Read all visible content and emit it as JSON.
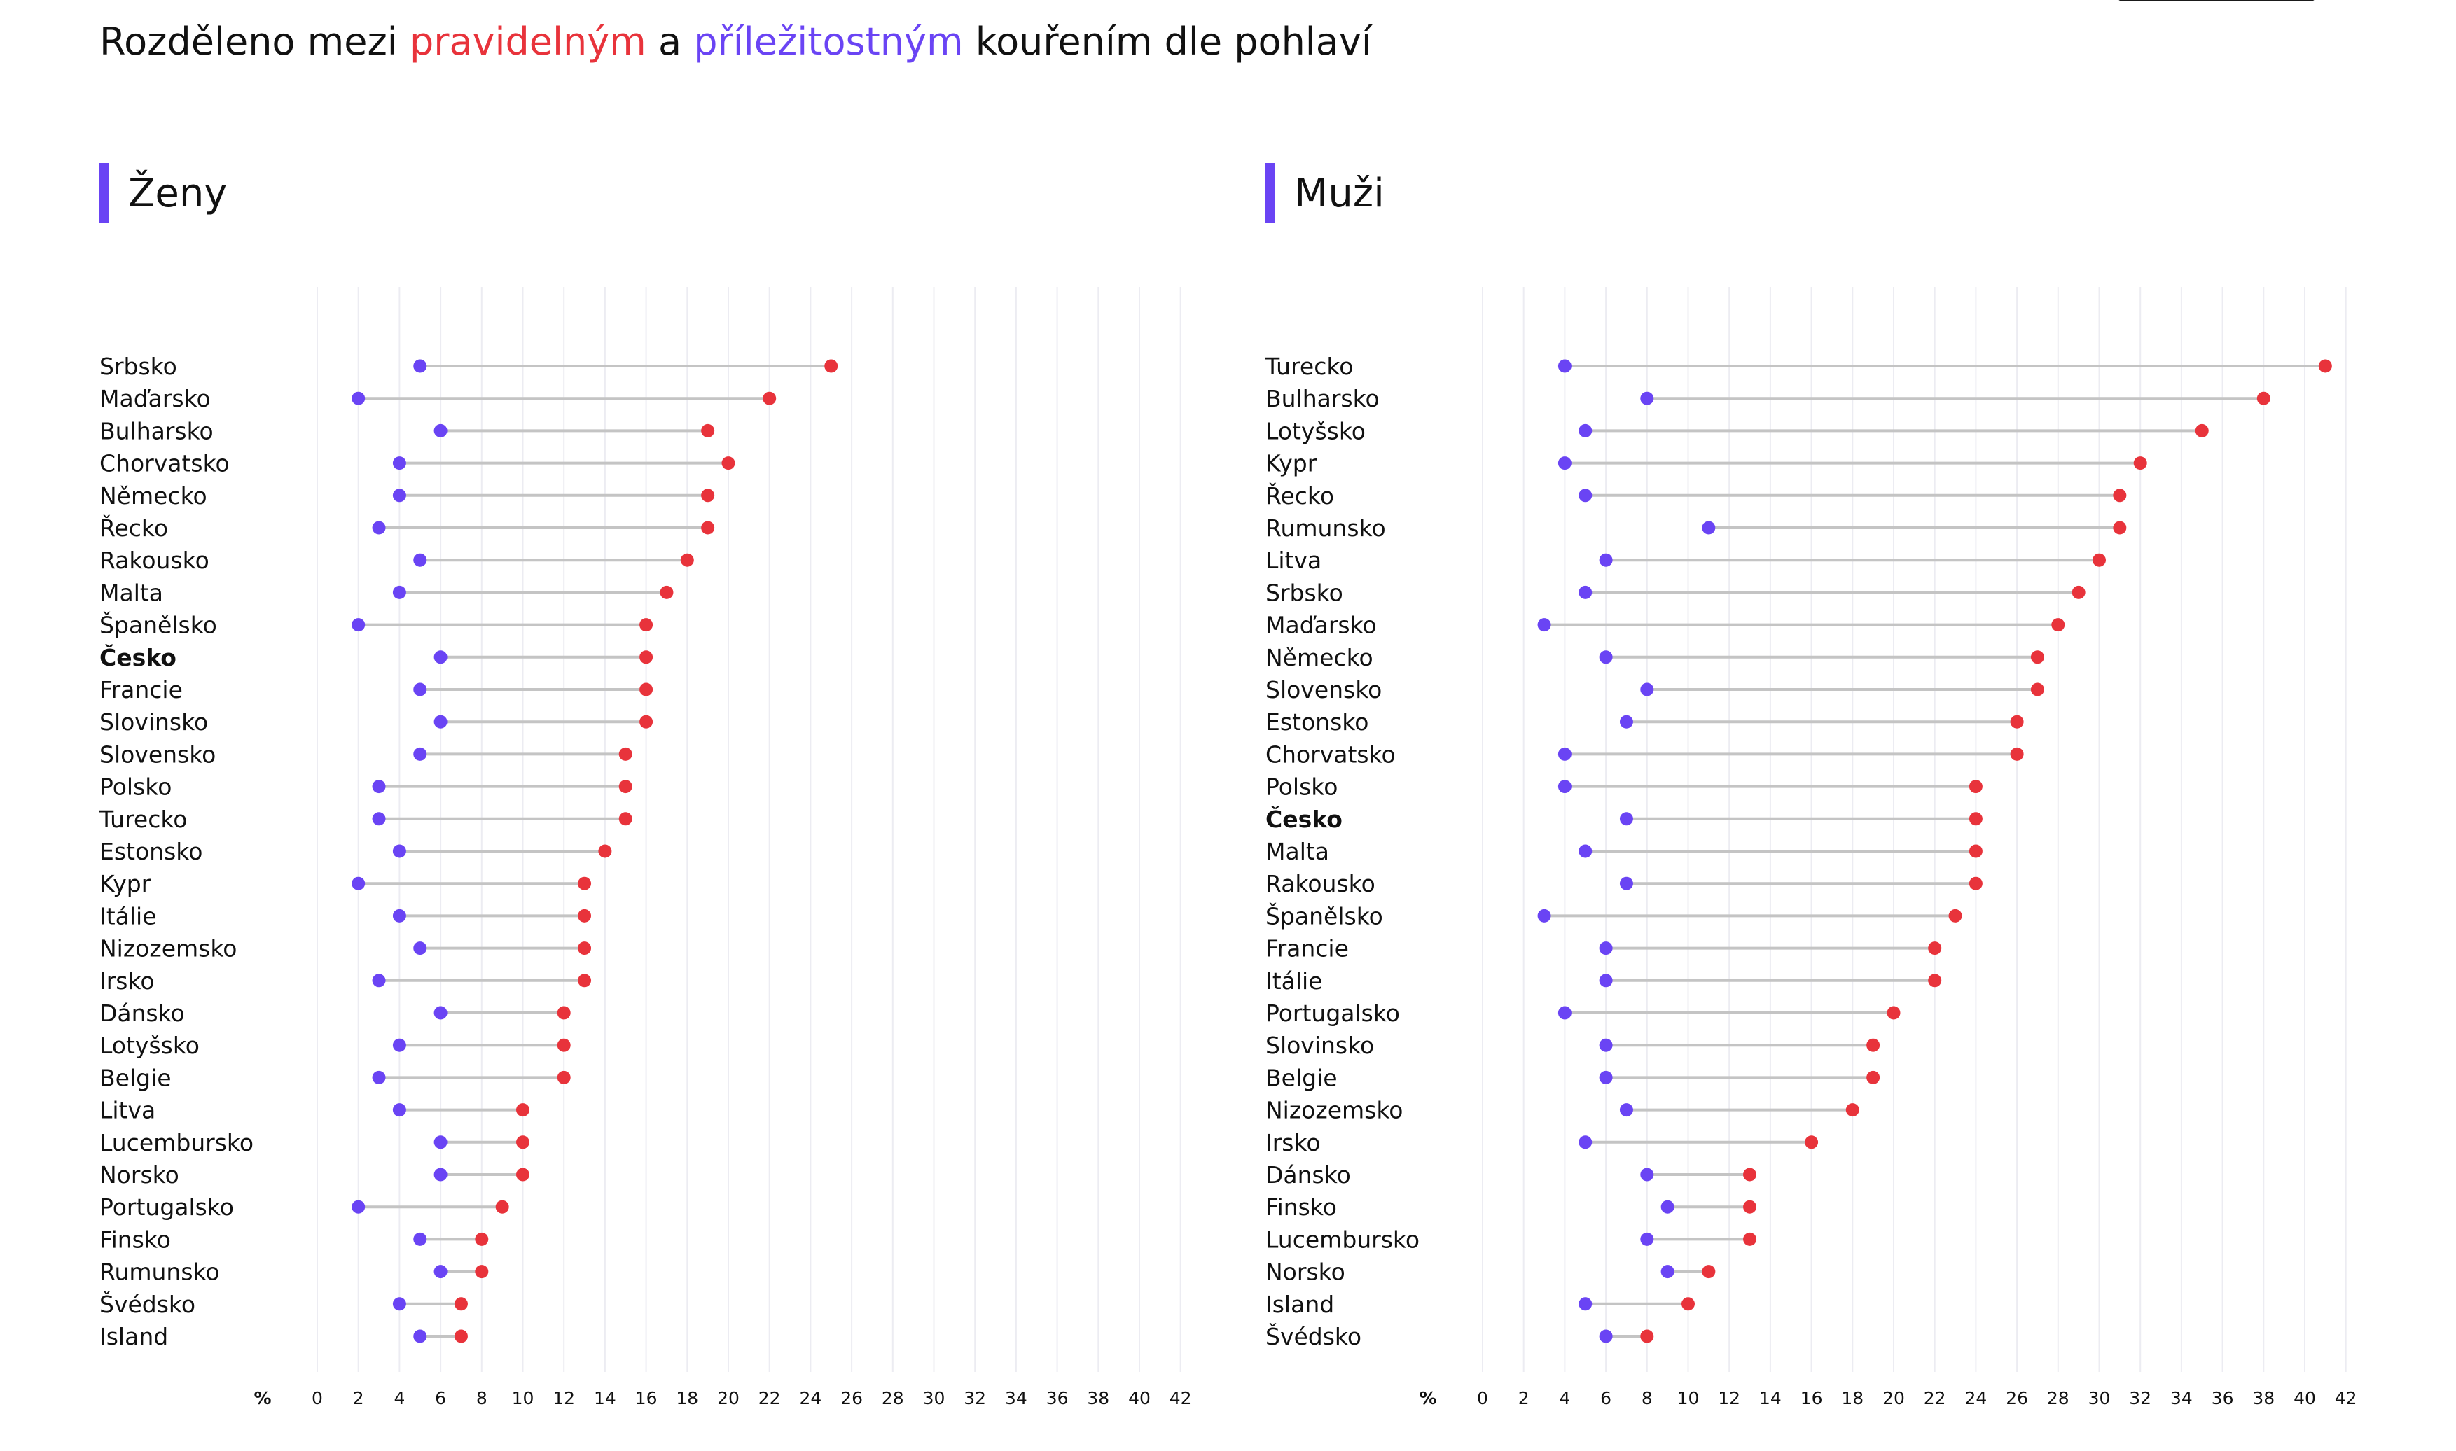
{
  "subtitle": {
    "prefix": "Rozděleno mezi ",
    "regular_word": "pravidelným",
    "middle": " a ",
    "occasional_word": "příležitostným",
    "suffix": " kouřením dle pohlaví"
  },
  "colors": {
    "regular": "#e8333b",
    "occasional": "#6a44f4",
    "connector": "#c4c4c4",
    "grid": "#ececf2",
    "accent_bar": "#6a44f4"
  },
  "chart_data": [
    {
      "type": "dumbbell",
      "title": "Ženy",
      "x_unit_label": "%",
      "x_ticks": [
        0,
        2,
        4,
        6,
        8,
        10,
        12,
        14,
        16,
        18,
        20,
        22,
        24,
        26,
        28,
        30,
        32,
        34,
        36,
        38,
        40,
        42
      ],
      "xlim": [
        0,
        42
      ],
      "grid": true,
      "highlight": "Česko",
      "series_names": [
        "pravidelným",
        "příležitostným"
      ],
      "rows": [
        {
          "country": "Srbsko",
          "occasional": 5,
          "regular": 25
        },
        {
          "country": "Maďarsko",
          "occasional": 2,
          "regular": 22
        },
        {
          "country": "Bulharsko",
          "occasional": 6,
          "regular": 19
        },
        {
          "country": "Chorvatsko",
          "occasional": 4,
          "regular": 20
        },
        {
          "country": "Německo",
          "occasional": 4,
          "regular": 19
        },
        {
          "country": "Řecko",
          "occasional": 3,
          "regular": 19
        },
        {
          "country": "Rakousko",
          "occasional": 5,
          "regular": 18
        },
        {
          "country": "Malta",
          "occasional": 4,
          "regular": 17
        },
        {
          "country": "Španělsko",
          "occasional": 2,
          "regular": 16
        },
        {
          "country": "Česko",
          "occasional": 6,
          "regular": 16
        },
        {
          "country": "Francie",
          "occasional": 5,
          "regular": 16
        },
        {
          "country": "Slovinsko",
          "occasional": 6,
          "regular": 16
        },
        {
          "country": "Slovensko",
          "occasional": 5,
          "regular": 15
        },
        {
          "country": "Polsko",
          "occasional": 3,
          "regular": 15
        },
        {
          "country": "Turecko",
          "occasional": 3,
          "regular": 15
        },
        {
          "country": "Estonsko",
          "occasional": 4,
          "regular": 14
        },
        {
          "country": "Kypr",
          "occasional": 2,
          "regular": 13
        },
        {
          "country": "Itálie",
          "occasional": 4,
          "regular": 13
        },
        {
          "country": "Nizozemsko",
          "occasional": 5,
          "regular": 13
        },
        {
          "country": "Irsko",
          "occasional": 3,
          "regular": 13
        },
        {
          "country": "Dánsko",
          "occasional": 6,
          "regular": 12
        },
        {
          "country": "Lotyšsko",
          "occasional": 4,
          "regular": 12
        },
        {
          "country": "Belgie",
          "occasional": 3,
          "regular": 12
        },
        {
          "country": "Litva",
          "occasional": 4,
          "regular": 10
        },
        {
          "country": "Lucembursko",
          "occasional": 6,
          "regular": 10
        },
        {
          "country": "Norsko",
          "occasional": 6,
          "regular": 10
        },
        {
          "country": "Portugalsko",
          "occasional": 2,
          "regular": 9
        },
        {
          "country": "Finsko",
          "occasional": 5,
          "regular": 8
        },
        {
          "country": "Rumunsko",
          "occasional": 6,
          "regular": 8
        },
        {
          "country": "Švédsko",
          "occasional": 4,
          "regular": 7
        },
        {
          "country": "Island",
          "occasional": 5,
          "regular": 7
        }
      ]
    },
    {
      "type": "dumbbell",
      "title": "Muži",
      "x_unit_label": "%",
      "x_ticks": [
        0,
        2,
        4,
        6,
        8,
        10,
        12,
        14,
        16,
        18,
        20,
        22,
        24,
        26,
        28,
        30,
        32,
        34,
        36,
        38,
        40,
        42
      ],
      "xlim": [
        0,
        42
      ],
      "grid": true,
      "highlight": "Česko",
      "series_names": [
        "pravidelným",
        "příležitostným"
      ],
      "rows": [
        {
          "country": "Turecko",
          "occasional": 4,
          "regular": 41
        },
        {
          "country": "Bulharsko",
          "occasional": 8,
          "regular": 38
        },
        {
          "country": "Lotyšsko",
          "occasional": 5,
          "regular": 35
        },
        {
          "country": "Kypr",
          "occasional": 4,
          "regular": 32
        },
        {
          "country": "Řecko",
          "occasional": 5,
          "regular": 31
        },
        {
          "country": "Rumunsko",
          "occasional": 11,
          "regular": 31
        },
        {
          "country": "Litva",
          "occasional": 6,
          "regular": 30
        },
        {
          "country": "Srbsko",
          "occasional": 5,
          "regular": 29
        },
        {
          "country": "Maďarsko",
          "occasional": 3,
          "regular": 28
        },
        {
          "country": "Německo",
          "occasional": 6,
          "regular": 27
        },
        {
          "country": "Slovensko",
          "occasional": 8,
          "regular": 27
        },
        {
          "country": "Estonsko",
          "occasional": 7,
          "regular": 26
        },
        {
          "country": "Chorvatsko",
          "occasional": 4,
          "regular": 26
        },
        {
          "country": "Polsko",
          "occasional": 4,
          "regular": 24
        },
        {
          "country": "Česko",
          "occasional": 7,
          "regular": 24
        },
        {
          "country": "Malta",
          "occasional": 5,
          "regular": 24
        },
        {
          "country": "Rakousko",
          "occasional": 7,
          "regular": 24
        },
        {
          "country": "Španělsko",
          "occasional": 3,
          "regular": 23
        },
        {
          "country": "Francie",
          "occasional": 6,
          "regular": 22
        },
        {
          "country": "Itálie",
          "occasional": 6,
          "regular": 22
        },
        {
          "country": "Portugalsko",
          "occasional": 4,
          "regular": 20
        },
        {
          "country": "Slovinsko",
          "occasional": 6,
          "regular": 19
        },
        {
          "country": "Belgie",
          "occasional": 6,
          "regular": 19
        },
        {
          "country": "Nizozemsko",
          "occasional": 7,
          "regular": 18
        },
        {
          "country": "Irsko",
          "occasional": 5,
          "regular": 16
        },
        {
          "country": "Dánsko",
          "occasional": 8,
          "regular": 13
        },
        {
          "country": "Finsko",
          "occasional": 9,
          "regular": 13
        },
        {
          "country": "Lucembursko",
          "occasional": 8,
          "regular": 13
        },
        {
          "country": "Norsko",
          "occasional": 9,
          "regular": 11
        },
        {
          "country": "Island",
          "occasional": 5,
          "regular": 10
        },
        {
          "country": "Švédsko",
          "occasional": 6,
          "regular": 8
        }
      ]
    }
  ]
}
